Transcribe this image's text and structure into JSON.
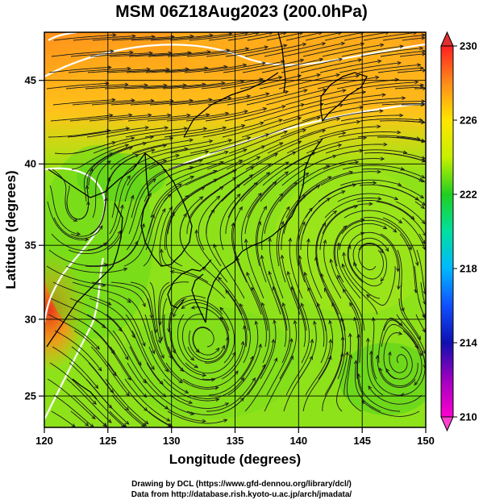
{
  "title": "MSM 06Z18Aug2023 (200.0hPa)",
  "axes": {
    "xlabel": "Longitude (degrees)",
    "ylabel": "Latitude  (degrees)",
    "x_ticks": [
      "120",
      "125",
      "130",
      "135",
      "140",
      "145",
      "150"
    ],
    "y_ticks": [
      "25",
      "30",
      "35",
      "40",
      "45"
    ]
  },
  "colorbar": {
    "labels": [
      "230",
      "226",
      "222",
      "218",
      "214",
      "210"
    ],
    "colors": [
      "#ff2020",
      "#ff8c1a",
      "#ffe600",
      "#c8f000",
      "#20d020",
      "#00e0a0",
      "#00b8ff",
      "#1050ff",
      "#1010b0",
      "#a000c0",
      "#ff00d0"
    ]
  },
  "credits": {
    "line1": "Drawing by DCL (https://www.gfd-dennou.org/library/dcl/)",
    "line2": "Data from http://database.rish.kyoto-u.ac.jp/arch/jmadata/"
  },
  "chart_data": {
    "type": "heatmap",
    "title": "MSM 06Z18Aug2023 (200.0hPa)",
    "xlabel": "Longitude (degrees)",
    "ylabel": "Latitude  (degrees)",
    "xlim": [
      120,
      150
    ],
    "ylim": [
      22.4,
      47.6
    ],
    "x_ticks": [
      120,
      125,
      130,
      135,
      140,
      145,
      150
    ],
    "y_ticks": [
      25,
      30,
      35,
      40,
      45
    ],
    "colorbar_range": [
      210,
      230
    ],
    "colorbar_ticks": [
      210,
      214,
      218,
      222,
      226,
      230
    ],
    "grid": true,
    "features": [
      "streamlines",
      "white contour lines",
      "coastlines",
      "lat-lon grid"
    ]
  }
}
